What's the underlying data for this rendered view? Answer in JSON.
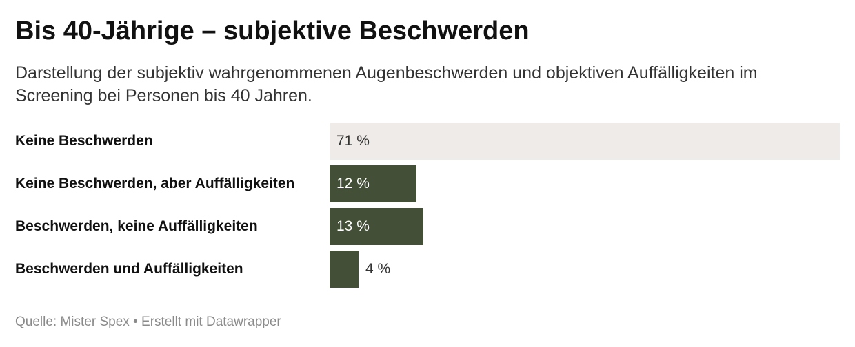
{
  "title": "Bis 40-Jährige – subjektive Beschwerden",
  "subtitle": "Darstellung der subjektiv wahrgenommenen Augenbeschwerden und objektiven Auffälligkeiten im Screening bei Personen bis 40 Jahren.",
  "footer": {
    "source": "Quelle: Mister Spex",
    "separator": "•",
    "credit": "Erstellt mit Datawrapper"
  },
  "colors": {
    "bar": "#434f36",
    "bar_light": "#efebe8",
    "label_on_dark": "#ffffff",
    "label_on_light": "#333333"
  },
  "chart_data": {
    "type": "bar",
    "orientation": "horizontal",
    "title": "Bis 40-Jährige – subjektive Beschwerden",
    "categories": [
      "Keine Beschwerden",
      "Keine Beschwerden, aber Auffälligkeiten",
      "Beschwerden, keine Auffälligkeiten",
      "Beschwerden und Auffälligkeiten"
    ],
    "values": [
      71,
      12,
      13,
      4
    ],
    "value_labels": [
      "71 %",
      "12 %",
      "13 %",
      "4 %"
    ],
    "unit": "%",
    "xlim": [
      0,
      71
    ],
    "grid": false,
    "legend": "none"
  }
}
